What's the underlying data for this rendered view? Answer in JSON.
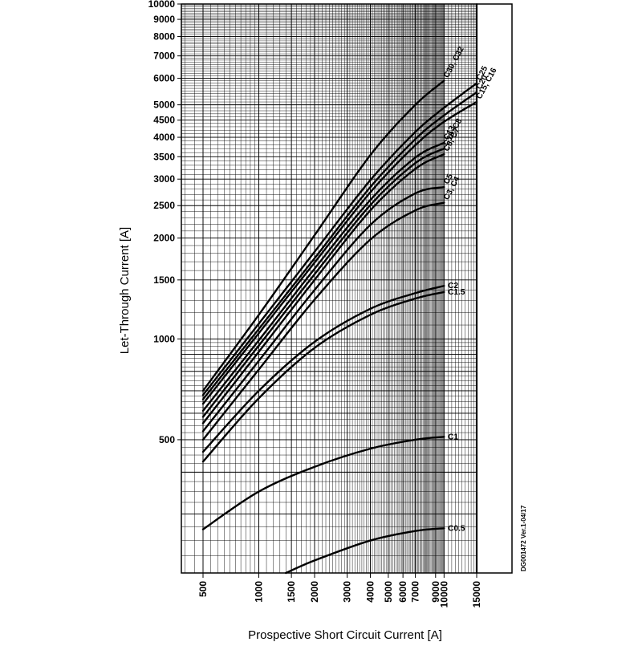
{
  "chart_data": {
    "type": "line",
    "title": "",
    "xlabel": "Prospective Short Circuit Current [A]",
    "ylabel": "Let-Through Current [A]",
    "x_scale": "log",
    "y_scale": "log",
    "xlim": [
      500,
      15000
    ],
    "ylim": [
      200,
      10000
    ],
    "grid": true,
    "x_tick_labels": [
      "500",
      "1000",
      "1500",
      "2000",
      "3000",
      "4000",
      "5000",
      "6000",
      "7000",
      "9000",
      "10000",
      "15000"
    ],
    "y_tick_labels": [
      "10000",
      "9000",
      "8000",
      "7000",
      "6000",
      "5000",
      "4500",
      "4000",
      "3500",
      "3000",
      "2500",
      "2000",
      "1500",
      "1000",
      "500"
    ],
    "doc_code": "DG001472  Ver.1-04/17",
    "series": [
      {
        "name": "C30, C32",
        "label": "C30, C32",
        "x": [
          500,
          1000,
          2000,
          4000,
          7000,
          10000
        ],
        "y": [
          700,
          1180,
          2040,
          3540,
          5000,
          5900
        ]
      },
      {
        "name": "C25",
        "label": "C25",
        "x": [
          500,
          1000,
          2000,
          4000,
          7000,
          10000,
          15000
        ],
        "y": [
          680,
          1110,
          1820,
          2980,
          4150,
          4900,
          5800
        ]
      },
      {
        "name": "C20",
        "label": "C20",
        "x": [
          500,
          1000,
          2000,
          4000,
          7000,
          10000,
          15000
        ],
        "y": [
          660,
          1070,
          1740,
          2840,
          3950,
          4650,
          5450
        ]
      },
      {
        "name": "C15, C16",
        "label": "C15, C16",
        "x": [
          500,
          1000,
          2000,
          4000,
          7000,
          10000,
          15000
        ],
        "y": [
          640,
          1040,
          1690,
          2740,
          3790,
          4450,
          5100
        ]
      },
      {
        "name": "C13",
        "label": "C13",
        "x": [
          500,
          1000,
          2000,
          4000,
          7000,
          10000
        ],
        "y": [
          610,
          990,
          1620,
          2600,
          3480,
          3850
        ]
      },
      {
        "name": "C10, C8",
        "label": "C10, C8",
        "x": [
          500,
          1000,
          2000,
          4000,
          7000,
          10000
        ],
        "y": [
          585,
          955,
          1560,
          2510,
          3350,
          3700
        ]
      },
      {
        "name": "C6, C7",
        "label": "C6, C7",
        "x": [
          500,
          1000,
          2000,
          4000,
          7000,
          10000
        ],
        "y": [
          560,
          915,
          1500,
          2420,
          3220,
          3560
        ]
      },
      {
        "name": "C5",
        "label": "C5",
        "x": [
          500,
          1000,
          2000,
          4000,
          7000,
          10000
        ],
        "y": [
          530,
          860,
          1400,
          2190,
          2720,
          2840
        ]
      },
      {
        "name": "C3, C4",
        "label": "C3, C4",
        "x": [
          500,
          1000,
          2000,
          4000,
          7000,
          10000
        ],
        "y": [
          500,
          810,
          1310,
          1980,
          2420,
          2550
        ]
      },
      {
        "name": "C2",
        "label": "C2",
        "x": [
          500,
          1000,
          2000,
          4000,
          7000,
          10000
        ],
        "y": [
          460,
          700,
          980,
          1230,
          1370,
          1440
        ]
      },
      {
        "name": "C1.5",
        "label": "C1.5",
        "x": [
          500,
          1000,
          2000,
          4000,
          7000,
          10000
        ],
        "y": [
          430,
          665,
          940,
          1180,
          1320,
          1380
        ]
      },
      {
        "name": "C1",
        "label": "C1",
        "x": [
          500,
          1000,
          2000,
          4000,
          7000,
          10000
        ],
        "y": [
          270,
          350,
          415,
          470,
          500,
          510
        ]
      },
      {
        "name": "C0.5",
        "label": "C0.5",
        "x": [
          1400,
          2000,
          4000,
          7000,
          10000
        ],
        "y": [
          200,
          218,
          250,
          267,
          272
        ]
      }
    ]
  }
}
